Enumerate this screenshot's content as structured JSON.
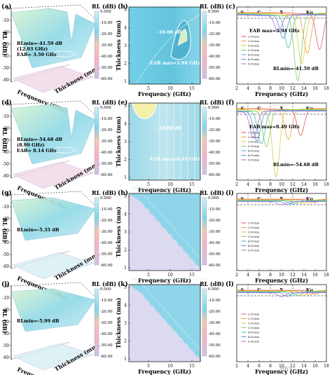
{
  "figure": {
    "cb_title": "RL (dB)",
    "cb_ticks": [
      "0.000",
      "-10.00",
      "-20.00",
      "-30.00",
      "-40.00",
      "-50.00",
      "-60.00"
    ],
    "contour_ylabel": "Thickness (mm)",
    "contour_xlabel": "Frequency (GHz)",
    "contour_yticks": [
      "1",
      "2",
      "3",
      "4",
      "5"
    ],
    "contour_xticks": [
      "5",
      "10",
      "15"
    ],
    "line_xlabel": "Frequency (GHz)",
    "line_xticks": [
      "2",
      "4",
      "6",
      "8",
      "10",
      "12",
      "14",
      "16",
      "18"
    ],
    "bands": [
      "S",
      "C",
      "X",
      "Ku"
    ],
    "legend": [
      "2.00 mm",
      "2.50 mm",
      "3.00 mm",
      "3.50 mm",
      "4.00 mm",
      "4.50 mm",
      "5.00 mm"
    ],
    "surf_zlabel": "RL (dB)",
    "surf_zticks": [
      "0",
      "-10",
      "-20",
      "-30",
      "-40",
      "-50",
      "-60"
    ],
    "surf_xlabel": "Frequency (GHz)",
    "surf_ylabel": "Thickness (mm)",
    "watermark": "材料学"
  },
  "chart_data": [
    {
      "panel": "a",
      "type": "surface",
      "zlabel": "RL (dB)",
      "annotations": [
        "RLmin=-41.59 dB",
        "(12.93 GHz)",
        "EAB= 3.50 GHz"
      ]
    },
    {
      "panel": "b",
      "type": "heatmap",
      "xlabel": "Frequency (GHz)",
      "ylabel": "Thickness (mm)",
      "annotations": [
        "-10.00 dB",
        "EAB max=3.94 GHz"
      ]
    },
    {
      "panel": "c",
      "type": "line",
      "xlabel": "Frequency (GHz)",
      "xlim": [
        2,
        18
      ],
      "annotations": [
        "EAB max=3.94 GHz",
        "RLmin=-41.59 dB"
      ],
      "series": [
        {
          "name": "2.00 mm",
          "color": "#e06060",
          "dip_x": 16.8,
          "dip_depth": 0.55
        },
        {
          "name": "2.50 mm",
          "color": "#f09a3a",
          "dip_x": 14.6,
          "dip_depth": 0.6
        },
        {
          "name": "3.00 mm",
          "color": "#d8cf40",
          "dip_x": 13.6,
          "dip_depth": 0.75
        },
        {
          "name": "3.50 mm",
          "color": "#7fcf5a",
          "dip_x": 12.9,
          "dip_depth": 1.0
        },
        {
          "name": "4.00 mm",
          "color": "#4cbdb0",
          "dip_x": 11.2,
          "dip_depth": 0.5
        },
        {
          "name": "4.50 mm",
          "color": "#5a8fe0",
          "dip_x": 10.3,
          "dip_depth": 0.35
        },
        {
          "name": "5.00 mm",
          "color": "#b070d0",
          "dip_x": 9.4,
          "dip_depth": 0.25
        }
      ]
    },
    {
      "panel": "d",
      "type": "surface",
      "zlabel": "RL (dB)",
      "annotations": [
        "RLmin=-54.68 dB",
        "(8.99 GHz)",
        "EAB= 8.14 GHz"
      ]
    },
    {
      "panel": "e",
      "type": "heatmap",
      "xlabel": "Frequency (GHz)",
      "ylabel": "Thickness (mm)",
      "annotations": [
        "-10.00 dB",
        "EAB max=8.49 GHz"
      ]
    },
    {
      "panel": "f",
      "type": "line",
      "xlabel": "Frequency (GHz)",
      "xlim": [
        2,
        18
      ],
      "annotations": [
        "EAB max=8.49 GHz",
        "RLmin=-54.68 dB"
      ],
      "series": [
        {
          "name": "2.00 mm",
          "color": "#e06060",
          "dip_x": 13.4,
          "dip_depth": 0.4
        },
        {
          "name": "2.50 mm",
          "color": "#f09a3a",
          "dip_x": 11.2,
          "dip_depth": 0.45
        },
        {
          "name": "3.00 mm",
          "color": "#d8cf40",
          "dip_x": 9.0,
          "dip_depth": 1.0
        },
        {
          "name": "3.50 mm",
          "color": "#7fcf5a",
          "dip_x": 7.3,
          "dip_depth": 0.55
        },
        {
          "name": "4.00 mm",
          "color": "#4cbdb0",
          "dip_x": 6.4,
          "dip_depth": 0.5
        },
        {
          "name": "4.50 mm",
          "color": "#5a8fe0",
          "dip_x": 5.6,
          "dip_depth": 0.45
        },
        {
          "name": "5.00 mm",
          "color": "#b070d0",
          "dip_x": 5.0,
          "dip_depth": 0.4
        }
      ]
    },
    {
      "panel": "g",
      "type": "surface",
      "zlabel": "RL (dB)",
      "annotations": [
        "RLmin=-5.35 dB"
      ]
    },
    {
      "panel": "h",
      "type": "heatmap",
      "xlabel": "Frequency (GHz)",
      "ylabel": "Thickness (mm)",
      "annotations": []
    },
    {
      "panel": "i",
      "type": "line",
      "xlabel": "Frequency (GHz)",
      "xlim": [
        2,
        18
      ],
      "annotations": [],
      "series": [
        {
          "name": "2.00 mm",
          "color": "#e06060",
          "dip_x": 16,
          "dip_depth": 0.05
        },
        {
          "name": "2.50 mm",
          "color": "#f09a3a",
          "dip_x": 15,
          "dip_depth": 0.05
        },
        {
          "name": "3.00 mm",
          "color": "#d8cf40",
          "dip_x": 14,
          "dip_depth": 0.05
        },
        {
          "name": "3.50 mm",
          "color": "#7fcf5a",
          "dip_x": 13,
          "dip_depth": 0.05
        },
        {
          "name": "4.00 mm",
          "color": "#4cbdb0",
          "dip_x": 12,
          "dip_depth": 0.05
        },
        {
          "name": "4.50 mm",
          "color": "#5a8fe0",
          "dip_x": 11,
          "dip_depth": 0.05
        },
        {
          "name": "5.00 mm",
          "color": "#b070d0",
          "dip_x": 10,
          "dip_depth": 0.05
        }
      ]
    },
    {
      "panel": "j",
      "type": "surface",
      "zlabel": "RL (dB)",
      "annotations": [
        "RLmin=-5.99 dB"
      ]
    },
    {
      "panel": "k",
      "type": "heatmap",
      "xlabel": "Frequency (GHz)",
      "ylabel": "Thickness (mm)",
      "annotations": []
    },
    {
      "panel": "l",
      "type": "line",
      "xlabel": "Frequency (GHz)",
      "xlim": [
        2,
        18
      ],
      "annotations": [],
      "series": [
        {
          "name": "2.00 mm",
          "color": "#e06060",
          "dip_x": 16,
          "dip_depth": 0.06
        },
        {
          "name": "2.50 mm",
          "color": "#f09a3a",
          "dip_x": 15,
          "dip_depth": 0.06
        },
        {
          "name": "3.00 mm",
          "color": "#d8cf40",
          "dip_x": 14,
          "dip_depth": 0.06
        },
        {
          "name": "3.50 mm",
          "color": "#7fcf5a",
          "dip_x": 13,
          "dip_depth": 0.06
        },
        {
          "name": "4.00 mm",
          "color": "#4cbdb0",
          "dip_x": 12,
          "dip_depth": 0.06
        },
        {
          "name": "4.50 mm",
          "color": "#5a8fe0",
          "dip_x": 11,
          "dip_depth": 0.06
        },
        {
          "name": "5.00 mm",
          "color": "#b070d0",
          "dip_x": 10,
          "dip_depth": 0.06
        }
      ]
    }
  ]
}
